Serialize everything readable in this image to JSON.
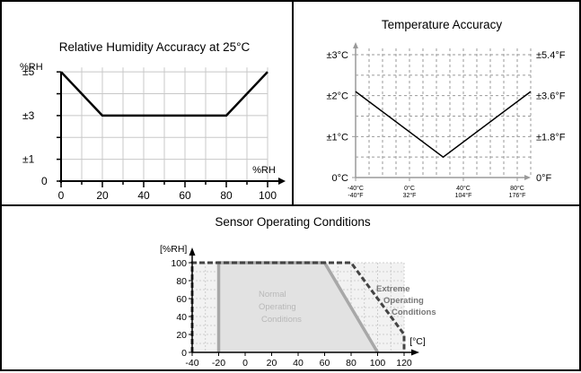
{
  "chart_data": [
    {
      "type": "line",
      "title": "Relative Humidity Accuracy at 25°C",
      "xlabel": "%RH",
      "ylabel": "%RH",
      "xlim": [
        0,
        100
      ],
      "ylim": [
        0,
        5.5
      ],
      "x_ticks": [
        0,
        20,
        40,
        60,
        80,
        100
      ],
      "y_ticks": [
        {
          "value": 5,
          "label": "±5"
        },
        {
          "value": 3,
          "label": "±3"
        },
        {
          "value": 1,
          "label": "±1"
        },
        {
          "value": 0,
          "label": "0"
        }
      ],
      "series": [
        {
          "x": [
            0,
            20,
            80,
            100
          ],
          "y": [
            5,
            3,
            3,
            5
          ]
        }
      ],
      "grid": true
    },
    {
      "type": "line",
      "title": "Temperature Accuracy",
      "xlim": [
        -40,
        90
      ],
      "ylim": [
        0,
        3
      ],
      "x_ticks": [
        {
          "value": -40,
          "label_c": "-40°C",
          "label_f": "-40°F"
        },
        {
          "value": 0,
          "label_c": "0°C",
          "label_f": "32°F"
        },
        {
          "value": 40,
          "label_c": "40°C",
          "label_f": "104°F"
        },
        {
          "value": 80,
          "label_c": "80°C",
          "label_f": "176°F"
        }
      ],
      "y_ticks_left": [
        {
          "value": 3,
          "label": "±3°C"
        },
        {
          "value": 2,
          "label": "±2°C"
        },
        {
          "value": 1,
          "label": "±1°C"
        },
        {
          "value": 0,
          "label": "0°C"
        }
      ],
      "y_ticks_right": [
        {
          "value": 3,
          "label": "±5.4°F"
        },
        {
          "value": 2,
          "label": "±3.6°F"
        },
        {
          "value": 1,
          "label": "±1.8°F"
        },
        {
          "value": 0,
          "label": "0°F"
        }
      ],
      "series": [
        {
          "x": [
            -40,
            25,
            90
          ],
          "y": [
            2.1,
            0.5,
            2.1
          ]
        }
      ],
      "grid": true
    },
    {
      "type": "area",
      "title": "Sensor Operating Conditions",
      "xlabel": "[°C]",
      "ylabel": "[%RH]",
      "xlim": [
        -40,
        120
      ],
      "ylim": [
        0,
        100
      ],
      "x_ticks": [
        -40,
        -20,
        0,
        20,
        40,
        60,
        80,
        100,
        120
      ],
      "y_ticks": [
        0,
        20,
        40,
        60,
        80,
        100
      ],
      "regions": [
        {
          "name": "Normal Operating Conditions",
          "label_lines": [
            "Normal",
            "Operating",
            "Conditions"
          ],
          "x": [
            -20,
            -20,
            60,
            100,
            100
          ],
          "y": [
            0,
            100,
            100,
            0,
            0
          ],
          "style": "solid"
        },
        {
          "name": "Extreme Operating Conditions",
          "label_lines": [
            "Extreme",
            "Operating",
            "Conditions"
          ],
          "x": [
            -40,
            -40,
            80,
            120,
            120
          ],
          "y": [
            0,
            100,
            100,
            20,
            0
          ],
          "style": "dashed"
        }
      ],
      "grid": true
    }
  ]
}
